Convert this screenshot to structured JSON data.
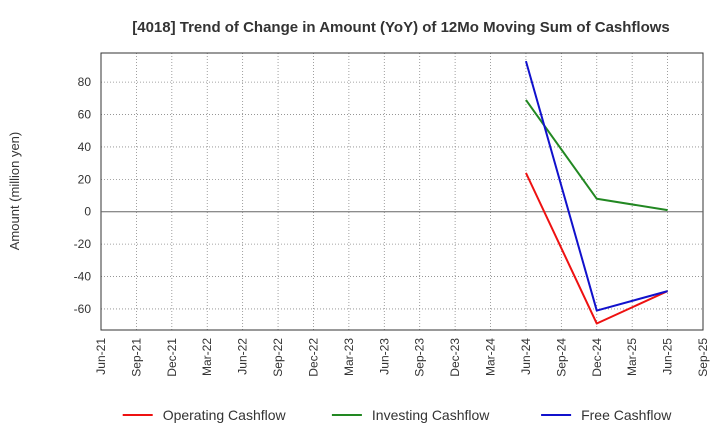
{
  "chart_data": {
    "type": "line",
    "title": "[4018]  Trend of Change in Amount (YoY) of 12Mo Moving Sum of Cashflows",
    "xlabel": "",
    "ylabel": "Amount (million yen)",
    "ylim": [
      -73,
      98
    ],
    "yticks": [
      -60,
      -40,
      -20,
      0,
      20,
      40,
      60,
      80
    ],
    "ytick_labels": [
      "-60",
      "-40",
      "-20",
      "0",
      "20",
      "40",
      "60",
      "80"
    ],
    "categories": [
      "Jun-21",
      "Sep-21",
      "Dec-21",
      "Mar-22",
      "Jun-22",
      "Sep-22",
      "Dec-22",
      "Mar-23",
      "Jun-23",
      "Sep-23",
      "Dec-23",
      "Mar-24",
      "Jun-24",
      "Sep-24",
      "Dec-24",
      "Mar-25",
      "Jun-25",
      "Sep-25"
    ],
    "grid": true,
    "legend_position": "bottom",
    "series": [
      {
        "name": "Operating Cashflow",
        "color": "#ee1111",
        "values": [
          null,
          null,
          null,
          null,
          null,
          null,
          null,
          null,
          null,
          null,
          null,
          null,
          24,
          null,
          -69,
          null,
          -49,
          null
        ]
      },
      {
        "name": "Investing Cashflow",
        "color": "#228822",
        "values": [
          null,
          null,
          null,
          null,
          null,
          null,
          null,
          null,
          null,
          null,
          null,
          null,
          69,
          null,
          8,
          null,
          1,
          null
        ]
      },
      {
        "name": "Free Cashflow",
        "color": "#1111cc",
        "values": [
          null,
          null,
          null,
          null,
          null,
          null,
          null,
          null,
          null,
          null,
          null,
          null,
          93,
          null,
          -61,
          null,
          -49,
          null
        ]
      }
    ]
  }
}
